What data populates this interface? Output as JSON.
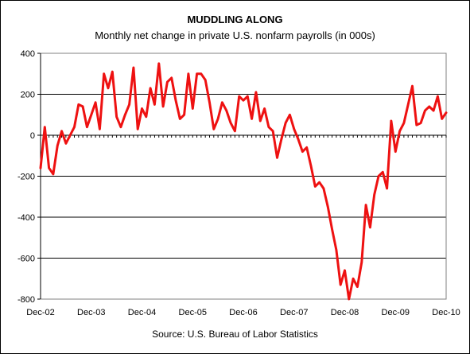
{
  "chart_data": {
    "type": "line",
    "title": "MUDDLING ALONG",
    "subtitle": "Monthly net change in private U.S. nonfarm payrolls (in 000s)",
    "source": "Source: U.S. Bureau of Labor Statistics",
    "xlabel": "",
    "ylabel": "",
    "ylim": [
      -800,
      400
    ],
    "yticks": [
      "400",
      "200",
      "0",
      "-200",
      "-400",
      "-600",
      "-800"
    ],
    "xticks": [
      "Dec-02",
      "Dec-03",
      "Dec-04",
      "Dec-05",
      "Dec-06",
      "Dec-07",
      "Dec-08",
      "Dec-09",
      "Dec-10"
    ],
    "grid": "horizontal",
    "legend": "none",
    "series": [
      {
        "color": "#ee1111",
        "start": "Dec-02",
        "frequency": "monthly",
        "values": [
          -160,
          40,
          -160,
          -190,
          -50,
          20,
          -40,
          0,
          40,
          150,
          140,
          40,
          100,
          160,
          30,
          300,
          230,
          310,
          90,
          40,
          100,
          150,
          330,
          30,
          130,
          90,
          230,
          150,
          350,
          140,
          260,
          280,
          170,
          80,
          100,
          300,
          130,
          300,
          300,
          270,
          160,
          30,
          80,
          160,
          120,
          60,
          20,
          190,
          170,
          190,
          80,
          210,
          70,
          130,
          40,
          20,
          -110,
          -20,
          60,
          100,
          30,
          -20,
          -80,
          -60,
          -150,
          -250,
          -230,
          -260,
          -350,
          -460,
          -560,
          -730,
          -660,
          -800,
          -700,
          -740,
          -620,
          -340,
          -450,
          -290,
          -200,
          -180,
          -260,
          70,
          -80,
          20,
          60,
          150,
          240,
          50,
          60,
          120,
          140,
          120,
          190,
          80,
          110
        ]
      }
    ]
  }
}
